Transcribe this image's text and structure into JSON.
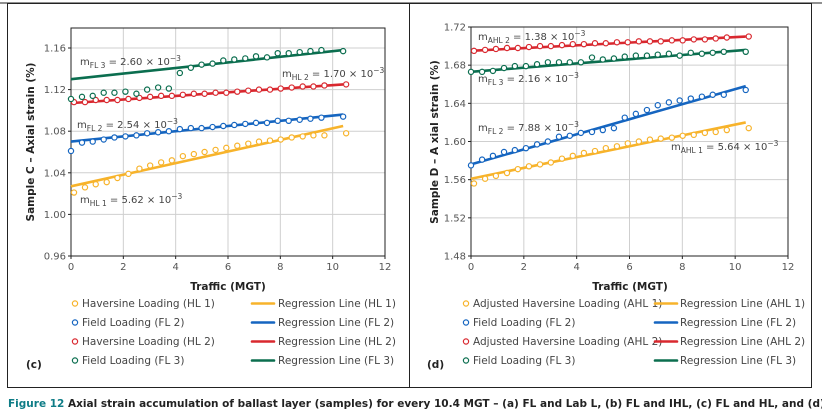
{
  "colors": {
    "HL1": "#f7b32b",
    "FL2": "#1565c0",
    "HL2": "#d9282f",
    "FL3": "#0b6e4f",
    "AHL1": "#f7b32b",
    "AHL2": "#d9282f",
    "caption_accent": "#0e7c86"
  },
  "caption": {
    "number": "Figure 12",
    "text": " Axial strain accumulation of ballast layer (samples) for every 10.4 MGT – (a) FL and Lab L, (b) FL and IHL, (c) FL and HL, and (d) FL and AHL"
  },
  "chart_data": [
    {
      "panel": "(c)",
      "type": "scatter",
      "xlabel": "Traffic (MGT)",
      "ylabel": "Sample C – Axial strain (%)",
      "xlim": [
        0,
        12
      ],
      "ylim": [
        0.96,
        1.18
      ],
      "xticks": [
        0,
        2,
        4,
        6,
        8,
        10,
        12
      ],
      "yticks": [
        "0.96",
        "1.00",
        "1.04",
        "1.08",
        "1.12",
        "1.16"
      ],
      "grid": true,
      "legend_placement": "bottom",
      "x": [
        0,
        0.42,
        0.83,
        1.25,
        1.66,
        2.08,
        2.5,
        2.91,
        3.33,
        3.74,
        4.16,
        4.58,
        4.99,
        5.41,
        5.82,
        6.24,
        6.66,
        7.07,
        7.49,
        7.9,
        8.32,
        8.74,
        9.15,
        9.57,
        10.4
      ],
      "series": [
        {
          "key": "HL1",
          "name": "Haversine Loading (HL 1)",
          "line_name": "Regression Line (HL 1)",
          "values": [
            1.021,
            1.026,
            1.029,
            1.031,
            1.035,
            1.039,
            1.044,
            1.047,
            1.05,
            1.052,
            1.056,
            1.058,
            1.06,
            1.062,
            1.064,
            1.066,
            1.068,
            1.07,
            1.071,
            1.072,
            1.074,
            1.075,
            1.076,
            1.076,
            1.078
          ],
          "regression": [
            [
              0,
              1.027
            ],
            [
              10.4,
              1.085
            ]
          ]
        },
        {
          "key": "FL2",
          "name": "Field Loading (FL 2)",
          "line_name": "Regression Line (FL 2)",
          "values": [
            1.061,
            1.069,
            1.07,
            1.072,
            1.074,
            1.075,
            1.076,
            1.078,
            1.079,
            1.08,
            1.082,
            1.083,
            1.083,
            1.084,
            1.085,
            1.086,
            1.087,
            1.088,
            1.088,
            1.09,
            1.09,
            1.091,
            1.092,
            1.093,
            1.094
          ],
          "regression": [
            [
              0,
              1.07
            ],
            [
              10.4,
              1.096
            ]
          ]
        },
        {
          "key": "HL2",
          "name": "Haversine Loading (HL 2)",
          "line_name": "Regression Line (HL 2)",
          "values": [
            1.108,
            1.108,
            1.11,
            1.11,
            1.11,
            1.111,
            1.112,
            1.113,
            1.114,
            1.114,
            1.115,
            1.116,
            1.116,
            1.117,
            1.117,
            1.118,
            1.119,
            1.12,
            1.12,
            1.121,
            1.122,
            1.123,
            1.123,
            1.124,
            1.125
          ],
          "regression": [
            [
              0,
              1.107
            ],
            [
              10.4,
              1.125
            ]
          ]
        },
        {
          "key": "FL3",
          "name": "Field Loading (FL 3)",
          "line_name": "Regression Line (FL 3)",
          "values": [
            1.111,
            1.113,
            1.114,
            1.117,
            1.117,
            1.118,
            1.116,
            1.12,
            1.122,
            1.121,
            1.136,
            1.141,
            1.144,
            1.145,
            1.148,
            1.149,
            1.15,
            1.152,
            1.151,
            1.155,
            1.155,
            1.156,
            1.157,
            1.158,
            1.157
          ],
          "regression": [
            [
              0,
              1.13
            ],
            [
              10.4,
              1.158
            ]
          ]
        }
      ],
      "annotations": [
        {
          "m": "m",
          "sub": "FL 3",
          "eq": " = 2.60 × 10",
          "sup": "−3"
        },
        {
          "m": "m",
          "sub": "HL 2",
          "eq": " = 1.70 × 10",
          "sup": "−3"
        },
        {
          "m": "m",
          "sub": "FL 2",
          "eq": " = 2.54 × 10",
          "sup": "−3"
        },
        {
          "m": "m",
          "sub": "HL 1",
          "eq": " = 5.62 × 10",
          "sup": "−3"
        }
      ]
    },
    {
      "panel": "(d)",
      "type": "scatter",
      "xlabel": "Traffic (MGT)",
      "ylabel": "Sample D – A xial strain (%)",
      "xlim": [
        0,
        12
      ],
      "ylim": [
        1.48,
        1.72
      ],
      "xticks": [
        0,
        2,
        4,
        6,
        8,
        10,
        12
      ],
      "yticks": [
        "1.48",
        "1.52",
        "1.56",
        "1.60",
        "1.64",
        "1.68",
        "1.72"
      ],
      "grid": true,
      "legend_placement": "bottom",
      "x": [
        0,
        0.42,
        0.83,
        1.25,
        1.66,
        2.08,
        2.5,
        2.91,
        3.33,
        3.74,
        4.16,
        4.58,
        4.99,
        5.41,
        5.82,
        6.24,
        6.66,
        7.07,
        7.49,
        7.9,
        8.32,
        8.74,
        9.15,
        9.57,
        10.4
      ],
      "series": [
        {
          "key": "AHL1",
          "name": "Adjusted Haversine Loading (AHL 1)",
          "line_name": "Regression Line (AHL 1)",
          "values": [
            1.556,
            1.561,
            1.564,
            1.567,
            1.571,
            1.574,
            1.576,
            1.578,
            1.582,
            1.585,
            1.588,
            1.59,
            1.593,
            1.595,
            1.598,
            1.6,
            1.602,
            1.603,
            1.604,
            1.606,
            1.607,
            1.609,
            1.61,
            1.612,
            1.614
          ],
          "regression": [
            [
              0,
              1.561
            ],
            [
              10.4,
              1.62
            ]
          ]
        },
        {
          "key": "FL2",
          "name": "Field Loading (FL 2)",
          "line_name": "Regression Line (FL 2)",
          "values": [
            1.575,
            1.581,
            1.585,
            1.589,
            1.591,
            1.593,
            1.597,
            1.6,
            1.605,
            1.606,
            1.609,
            1.61,
            1.612,
            1.614,
            1.625,
            1.629,
            1.633,
            1.638,
            1.641,
            1.643,
            1.645,
            1.647,
            1.649,
            1.649,
            1.654
          ],
          "regression": [
            [
              0,
              1.576
            ],
            [
              10.4,
              1.658
            ]
          ]
        },
        {
          "key": "AHL2",
          "name": "Adjusted Haversine Loading (AHL 2)",
          "line_name": "Regression Line (AHL 2)",
          "values": [
            1.695,
            1.696,
            1.697,
            1.698,
            1.698,
            1.699,
            1.7,
            1.7,
            1.701,
            1.702,
            1.702,
            1.703,
            1.703,
            1.704,
            1.704,
            1.705,
            1.705,
            1.705,
            1.706,
            1.706,
            1.707,
            1.707,
            1.708,
            1.709,
            1.71
          ],
          "regression": [
            [
              0,
              1.695
            ],
            [
              10.4,
              1.71
            ]
          ]
        },
        {
          "key": "FL3",
          "name": "Field Loading (FL 3)",
          "line_name": "Regression Line (FL 3)",
          "values": [
            1.673,
            1.673,
            1.674,
            1.677,
            1.679,
            1.679,
            1.681,
            1.683,
            1.683,
            1.683,
            1.683,
            1.688,
            1.686,
            1.687,
            1.689,
            1.69,
            1.69,
            1.691,
            1.692,
            1.69,
            1.693,
            1.692,
            1.693,
            1.694,
            1.694
          ],
          "regression": [
            [
              0,
              1.673
            ],
            [
              10.4,
              1.696
            ]
          ]
        }
      ],
      "annotations": [
        {
          "m": "m",
          "sub": "AHL 2",
          "eq": " = 1.38 × 10",
          "sup": "−3"
        },
        {
          "m": "m",
          "sub": "FL 3",
          "eq": " = 2.16 × 10",
          "sup": "−3"
        },
        {
          "m": "m",
          "sub": "FL 2",
          "eq": " = 7.88 × 10",
          "sup": "−3"
        },
        {
          "m": "m",
          "sub": "AHL 1",
          "eq": " = 5.64 × 10",
          "sup": "−3"
        }
      ]
    }
  ]
}
